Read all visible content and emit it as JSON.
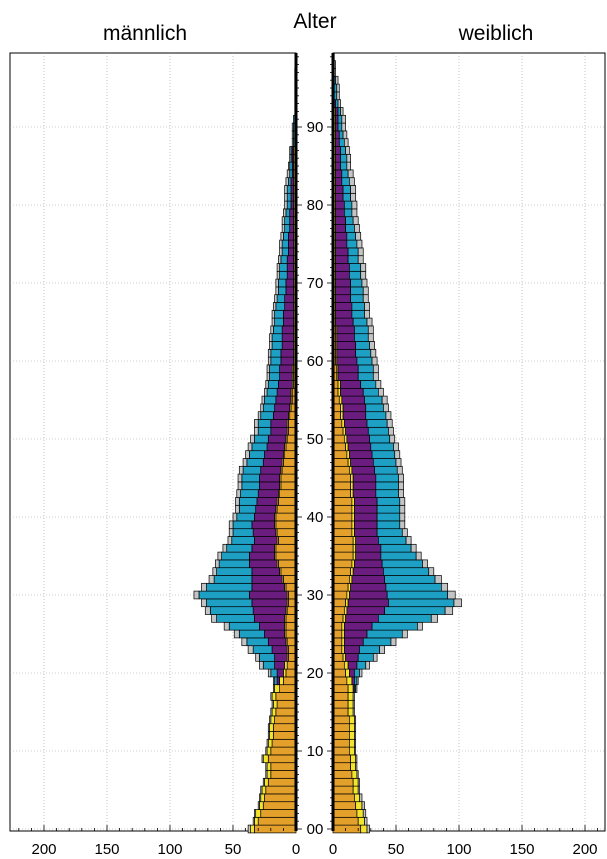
{
  "chart_data": {
    "type": "bar",
    "title_left": "männlich",
    "title_center": "Alter",
    "title_right": "weiblich",
    "x_ticks": [
      "200",
      "150",
      "100",
      "50",
      "0"
    ],
    "x_ticks_right": [
      "0",
      "50",
      "100",
      "150",
      "200"
    ],
    "age_ticks": [
      "00",
      "10",
      "20",
      "30",
      "40",
      "50",
      "60",
      "70",
      "80",
      "90"
    ],
    "xlim": [
      0,
      230
    ],
    "age_range": [
      0,
      99
    ],
    "grid": true,
    "stack_order": [
      "orange",
      "yellow",
      "purple",
      "teal",
      "gray"
    ],
    "colors": {
      "orange": "#E3A02B",
      "yellow": "#F2E52C",
      "purple": "#6B1D7F",
      "teal": "#1EA0C4",
      "gray": "#C4C4C4"
    },
    "male": [
      [
        33,
        3,
        0,
        0,
        2
      ],
      [
        30,
        3,
        0,
        0,
        1
      ],
      [
        28,
        4,
        0,
        0,
        1
      ],
      [
        26,
        3,
        0,
        0,
        1
      ],
      [
        25,
        3,
        0,
        0,
        1
      ],
      [
        24,
        3,
        0,
        0,
        1
      ],
      [
        22,
        3,
        0,
        0,
        1
      ],
      [
        20,
        3,
        0,
        0,
        1
      ],
      [
        20,
        3,
        0,
        0,
        1
      ],
      [
        22,
        4,
        0,
        0,
        1
      ],
      [
        20,
        3,
        0,
        0,
        1
      ],
      [
        19,
        3,
        0,
        0,
        1
      ],
      [
        18,
        3,
        0,
        0,
        1
      ],
      [
        18,
        3,
        0,
        0,
        1
      ],
      [
        17,
        3,
        0,
        0,
        1
      ],
      [
        16,
        3,
        0,
        0,
        1
      ],
      [
        15,
        3,
        0,
        0,
        1
      ],
      [
        16,
        3,
        0,
        0,
        1
      ],
      [
        13,
        4,
        0,
        0,
        1
      ],
      [
        10,
        3,
        2,
        2,
        1
      ],
      [
        8,
        2,
        5,
        5,
        2
      ],
      [
        7,
        2,
        8,
        9,
        3
      ],
      [
        6,
        1,
        10,
        12,
        3
      ],
      [
        6,
        1,
        12,
        15,
        4
      ],
      [
        7,
        1,
        14,
        17,
        4
      ],
      [
        8,
        1,
        16,
        20,
        4
      ],
      [
        8,
        1,
        20,
        24,
        4
      ],
      [
        8,
        1,
        24,
        30,
        4
      ],
      [
        7,
        1,
        26,
        34,
        4
      ],
      [
        6,
        1,
        28,
        36,
        4
      ],
      [
        6,
        1,
        30,
        40,
        4
      ],
      [
        8,
        1,
        26,
        36,
        4
      ],
      [
        10,
        1,
        24,
        30,
        4
      ],
      [
        12,
        1,
        22,
        28,
        3
      ],
      [
        14,
        1,
        22,
        24,
        3
      ],
      [
        16,
        1,
        20,
        22,
        3
      ],
      [
        16,
        1,
        18,
        20,
        3
      ],
      [
        14,
        1,
        18,
        18,
        3
      ],
      [
        15,
        1,
        18,
        16,
        3
      ],
      [
        16,
        1,
        18,
        15,
        3
      ],
      [
        16,
        1,
        16,
        14,
        3
      ],
      [
        15,
        1,
        16,
        13,
        3
      ],
      [
        14,
        1,
        16,
        14,
        3
      ],
      [
        13,
        1,
        16,
        14,
        3
      ],
      [
        12,
        1,
        16,
        14,
        3
      ],
      [
        12,
        1,
        16,
        14,
        3
      ],
      [
        11,
        1,
        16,
        14,
        3
      ],
      [
        10,
        1,
        15,
        13,
        3
      ],
      [
        9,
        1,
        15,
        12,
        3
      ],
      [
        8,
        1,
        14,
        12,
        3
      ],
      [
        7,
        1,
        14,
        11,
        3
      ],
      [
        6,
        1,
        13,
        10,
        3
      ],
      [
        6,
        1,
        13,
        10,
        3
      ],
      [
        5,
        1,
        12,
        10,
        2
      ],
      [
        4,
        1,
        12,
        9,
        2
      ],
      [
        3,
        1,
        12,
        9,
        2
      ],
      [
        3,
        1,
        11,
        8,
        2
      ],
      [
        2,
        1,
        11,
        8,
        2
      ],
      [
        2,
        1,
        10,
        8,
        2
      ],
      [
        2,
        1,
        10,
        8,
        2
      ],
      [
        1,
        1,
        10,
        8,
        2
      ],
      [
        1,
        1,
        10,
        8,
        2
      ],
      [
        1,
        1,
        9,
        8,
        2
      ],
      [
        1,
        1,
        9,
        8,
        2
      ],
      [
        1,
        1,
        9,
        7,
        2
      ],
      [
        1,
        1,
        8,
        7,
        2
      ],
      [
        1,
        1,
        8,
        7,
        2
      ],
      [
        1,
        1,
        7,
        7,
        2
      ],
      [
        1,
        1,
        7,
        6,
        2
      ],
      [
        1,
        1,
        6,
        6,
        2
      ],
      [
        1,
        1,
        6,
        6,
        2
      ],
      [
        1,
        1,
        5,
        6,
        2
      ],
      [
        1,
        1,
        5,
        6,
        2
      ],
      [
        1,
        1,
        5,
        5,
        2
      ],
      [
        1,
        1,
        4,
        5,
        2
      ],
      [
        1,
        1,
        4,
        5,
        2
      ],
      [
        1,
        1,
        4,
        4,
        2
      ],
      [
        1,
        1,
        3,
        4,
        2
      ],
      [
        1,
        1,
        3,
        4,
        2
      ],
      [
        1,
        1,
        3,
        3,
        2
      ],
      [
        1,
        1,
        2,
        3,
        2
      ],
      [
        1,
        1,
        2,
        3,
        2
      ],
      [
        1,
        1,
        2,
        3,
        2
      ],
      [
        1,
        1,
        2,
        2,
        2
      ],
      [
        1,
        1,
        1,
        2,
        2
      ],
      [
        1,
        1,
        1,
        2,
        1
      ],
      [
        1,
        1,
        1,
        1,
        1
      ],
      [
        1,
        1,
        1,
        1,
        1
      ],
      [
        0,
        0,
        1,
        1,
        1
      ],
      [
        0,
        0,
        1,
        1,
        1
      ],
      [
        0,
        0,
        1,
        1,
        1
      ],
      [
        0,
        0,
        1,
        1,
        0
      ],
      [
        0,
        0,
        0,
        1,
        0
      ],
      [
        0,
        0,
        0,
        1,
        0
      ],
      [
        0,
        0,
        0,
        1,
        0
      ],
      [
        0,
        0,
        0,
        1,
        0
      ],
      [
        0,
        0,
        0,
        0,
        1
      ],
      [
        0,
        0,
        0,
        0,
        1
      ],
      [
        0,
        0,
        0,
        0,
        0
      ],
      [
        0,
        0,
        0,
        0,
        0
      ]
    ],
    "female": [
      [
        22,
        5,
        0,
        0,
        2
      ],
      [
        20,
        5,
        0,
        0,
        2
      ],
      [
        19,
        5,
        0,
        0,
        2
      ],
      [
        18,
        5,
        0,
        0,
        2
      ],
      [
        17,
        4,
        0,
        0,
        2
      ],
      [
        16,
        4,
        0,
        0,
        1
      ],
      [
        16,
        4,
        0,
        0,
        1
      ],
      [
        15,
        4,
        0,
        0,
        1
      ],
      [
        14,
        4,
        0,
        0,
        1
      ],
      [
        14,
        4,
        0,
        0,
        1
      ],
      [
        13,
        4,
        0,
        0,
        1
      ],
      [
        13,
        4,
        0,
        0,
        1
      ],
      [
        13,
        4,
        0,
        0,
        1
      ],
      [
        13,
        4,
        0,
        0,
        1
      ],
      [
        13,
        4,
        0,
        0,
        1
      ],
      [
        12,
        4,
        0,
        0,
        1
      ],
      [
        12,
        4,
        0,
        0,
        1
      ],
      [
        12,
        4,
        0,
        0,
        1
      ],
      [
        12,
        4,
        1,
        1,
        1
      ],
      [
        11,
        4,
        2,
        2,
        1
      ],
      [
        10,
        3,
        4,
        4,
        2
      ],
      [
        9,
        3,
        7,
        7,
        3
      ],
      [
        8,
        2,
        10,
        12,
        3
      ],
      [
        7,
        2,
        12,
        16,
        4
      ],
      [
        7,
        2,
        15,
        22,
        4
      ],
      [
        7,
        2,
        18,
        28,
        4
      ],
      [
        7,
        2,
        22,
        36,
        4
      ],
      [
        8,
        2,
        26,
        42,
        5
      ],
      [
        9,
        2,
        30,
        48,
        6
      ],
      [
        10,
        2,
        32,
        52,
        6
      ],
      [
        11,
        2,
        30,
        48,
        6
      ],
      [
        12,
        2,
        28,
        44,
        5
      ],
      [
        13,
        2,
        26,
        40,
        5
      ],
      [
        14,
        2,
        24,
        36,
        4
      ],
      [
        15,
        2,
        22,
        32,
        4
      ],
      [
        16,
        2,
        20,
        28,
        4
      ],
      [
        16,
        2,
        20,
        24,
        4
      ],
      [
        16,
        2,
        18,
        22,
        4
      ],
      [
        15,
        2,
        18,
        20,
        4
      ],
      [
        15,
        2,
        18,
        18,
        4
      ],
      [
        15,
        2,
        18,
        18,
        4
      ],
      [
        15,
        2,
        18,
        18,
        4
      ],
      [
        15,
        2,
        18,
        18,
        4
      ],
      [
        14,
        2,
        18,
        18,
        4
      ],
      [
        14,
        2,
        18,
        18,
        4
      ],
      [
        14,
        2,
        18,
        18,
        4
      ],
      [
        13,
        2,
        18,
        18,
        4
      ],
      [
        12,
        2,
        18,
        18,
        4
      ],
      [
        11,
        2,
        18,
        18,
        4
      ],
      [
        10,
        2,
        18,
        18,
        4
      ],
      [
        9,
        2,
        18,
        16,
        4
      ],
      [
        8,
        2,
        18,
        16,
        4
      ],
      [
        7,
        2,
        18,
        16,
        4
      ],
      [
        6,
        2,
        18,
        16,
        4
      ],
      [
        6,
        2,
        18,
        14,
        4
      ],
      [
        5,
        2,
        18,
        14,
        4
      ],
      [
        4,
        2,
        18,
        12,
        4
      ],
      [
        4,
        2,
        16,
        12,
        4
      ],
      [
        3,
        1,
        16,
        12,
        4
      ],
      [
        3,
        1,
        16,
        12,
        4
      ],
      [
        2,
        1,
        16,
        12,
        4
      ],
      [
        2,
        1,
        15,
        12,
        4
      ],
      [
        2,
        1,
        15,
        11,
        4
      ],
      [
        2,
        1,
        14,
        11,
        4
      ],
      [
        2,
        1,
        14,
        11,
        4
      ],
      [
        1,
        1,
        14,
        11,
        4
      ],
      [
        1,
        1,
        13,
        10,
        4
      ],
      [
        1,
        1,
        13,
        10,
        4
      ],
      [
        1,
        1,
        12,
        10,
        4
      ],
      [
        1,
        1,
        12,
        10,
        4
      ],
      [
        1,
        1,
        12,
        9,
        4
      ],
      [
        1,
        1,
        11,
        9,
        4
      ],
      [
        1,
        1,
        11,
        9,
        4
      ],
      [
        1,
        1,
        10,
        8,
        4
      ],
      [
        1,
        1,
        10,
        8,
        4
      ],
      [
        1,
        1,
        9,
        8,
        4
      ],
      [
        1,
        1,
        9,
        7,
        4
      ],
      [
        1,
        1,
        8,
        7,
        4
      ],
      [
        1,
        1,
        8,
        6,
        4
      ],
      [
        1,
        1,
        7,
        6,
        4
      ],
      [
        1,
        1,
        7,
        6,
        4
      ],
      [
        1,
        1,
        6,
        6,
        4
      ],
      [
        1,
        1,
        6,
        6,
        4
      ],
      [
        1,
        1,
        5,
        6,
        4
      ],
      [
        1,
        1,
        5,
        5,
        4
      ],
      [
        1,
        1,
        4,
        5,
        3
      ],
      [
        1,
        1,
        4,
        5,
        3
      ],
      [
        1,
        1,
        4,
        4,
        3
      ],
      [
        1,
        1,
        3,
        4,
        3
      ],
      [
        1,
        1,
        3,
        3,
        3
      ],
      [
        1,
        1,
        2,
        3,
        3
      ],
      [
        1,
        1,
        2,
        3,
        3
      ],
      [
        1,
        1,
        2,
        2,
        2
      ],
      [
        0,
        0,
        2,
        2,
        2
      ],
      [
        0,
        0,
        1,
        2,
        2
      ],
      [
        0,
        0,
        1,
        2,
        2
      ],
      [
        0,
        0,
        1,
        1,
        2
      ],
      [
        0,
        0,
        0,
        1,
        1
      ],
      [
        0,
        0,
        0,
        1,
        1
      ],
      [
        0,
        0,
        0,
        0,
        1
      ]
    ]
  }
}
